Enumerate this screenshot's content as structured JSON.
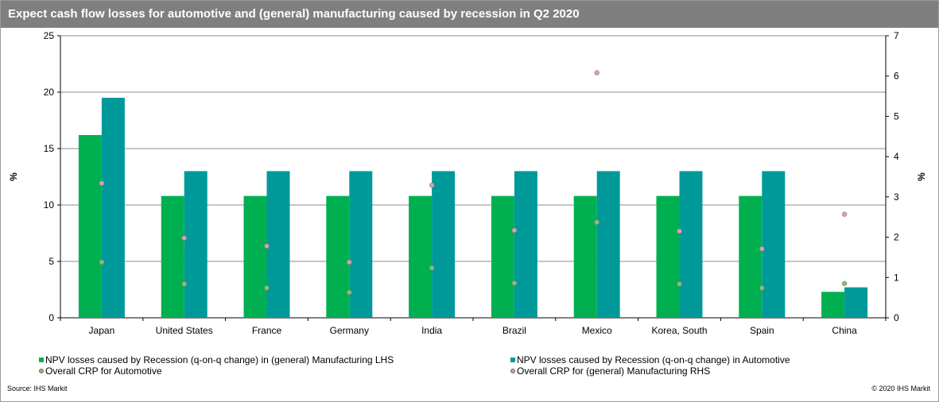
{
  "title": "Expect cash flow losses for automotive and (general) manufacturing caused by recession in Q2 2020",
  "source": "Source:  IHS Markit",
  "copyright": "© 2020  IHS Markit",
  "colors": {
    "manufacturing_bar": "#00b050",
    "automotive_bar": "#009999",
    "crp_automotive": "#8fbc6a",
    "crp_manufacturing": "#d9a0a8",
    "title_bg": "#7f7f7f"
  },
  "chart_data": {
    "type": "bar",
    "categories": [
      "Japan",
      "United States",
      "France",
      "Germany",
      "India",
      "Brazil",
      "Mexico",
      "Korea, South",
      "Spain",
      "China"
    ],
    "ylabel": "%",
    "y2label": "%",
    "ylim": [
      0,
      25
    ],
    "y2lim": [
      0,
      7
    ],
    "yticks": [
      0,
      5,
      10,
      15,
      20,
      25
    ],
    "y2ticks": [
      0,
      1,
      2,
      3,
      4,
      5,
      6,
      7
    ],
    "grid": true,
    "legend_position": "bottom",
    "series": [
      {
        "name": "NPV losses caused by Recession (q-on-q change) in (general) Manufacturing LHS",
        "kind": "bar",
        "axis": "left",
        "color": "#00b050",
        "values": [
          16.2,
          10.8,
          10.8,
          10.8,
          10.8,
          10.8,
          10.8,
          10.8,
          10.8,
          2.3
        ]
      },
      {
        "name": "NPV losses caused by Recession (q-on-q change) in Automotive",
        "kind": "bar",
        "axis": "left",
        "color": "#009999",
        "values": [
          19.5,
          13.0,
          13.0,
          13.0,
          13.0,
          13.0,
          13.0,
          13.0,
          13.0,
          2.7
        ]
      },
      {
        "name": "Overall CRP for Automotive",
        "kind": "dot",
        "axis": "right",
        "color": "#8fbc6a",
        "values": [
          1.38,
          0.84,
          0.74,
          0.63,
          1.24,
          0.86,
          2.37,
          0.84,
          0.74,
          0.85
        ]
      },
      {
        "name": "Overall CRP for (general) Manufacturing RHS",
        "kind": "dot",
        "axis": "right",
        "color": "#d9a0a8",
        "values": [
          3.34,
          1.98,
          1.78,
          1.38,
          3.29,
          2.17,
          6.08,
          2.15,
          1.71,
          2.57
        ]
      }
    ]
  }
}
